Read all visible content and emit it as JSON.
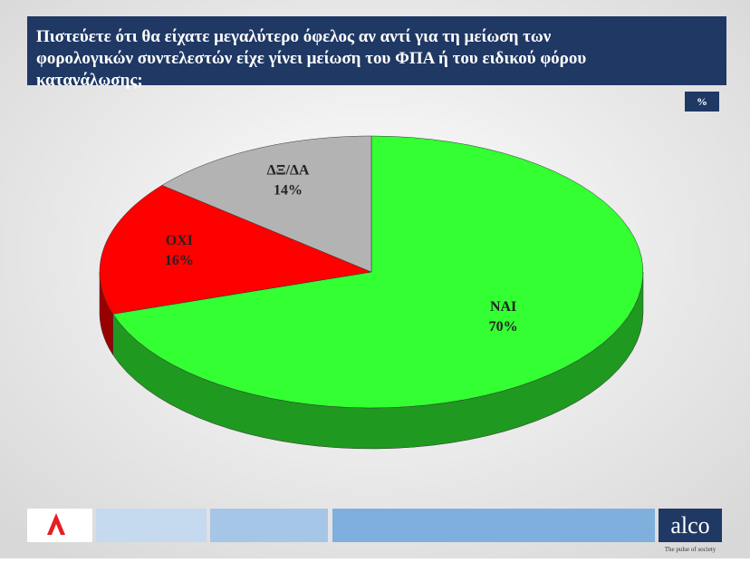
{
  "chart_data": {
    "type": "pie",
    "title": "Πιστεύετε ότι θα είχατε μεγαλύτερο όφελος αν αντί για τη μείωση των φορολογικών συντελεστών είχε γίνει μείωση του ΦΠΑ ή του ειδικού φόρου κατανάλωσης;",
    "unit_badge": "%",
    "categories": [
      "ΝΑΙ",
      "ΟΧΙ",
      "ΔΞ/ΔΑ"
    ],
    "values": [
      70,
      16,
      14
    ],
    "value_labels": [
      "70%",
      "16%",
      "14%"
    ],
    "colors": [
      "#33ff33",
      "#ff0000",
      "#b3b3b3"
    ]
  },
  "logo": {
    "text": "alco",
    "tagline": "The pulse of society"
  }
}
